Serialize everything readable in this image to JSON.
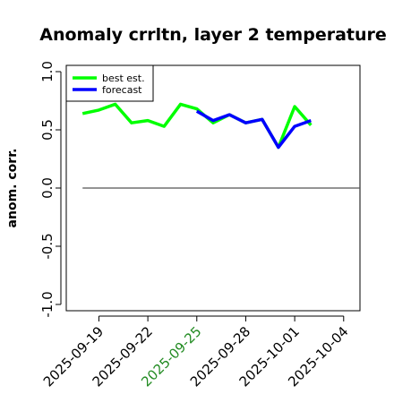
{
  "chart_data": {
    "type": "line",
    "title": "Anomaly crrltn, layer 2 temperature",
    "xlabel": "",
    "ylabel": "anom. corr.",
    "ylim": [
      -1.0,
      1.0
    ],
    "yticks": [
      "-1.0",
      "-0.5",
      "0.0",
      "0.5",
      "1.0"
    ],
    "ytick_values": [
      -1.0,
      -0.5,
      0.0,
      0.5,
      1.0
    ],
    "x_range": [
      "2025-09-17",
      "2025-10-05"
    ],
    "xticks": [
      {
        "date": "2025-09-19",
        "label": "2025-09-19",
        "color": "#000000"
      },
      {
        "date": "2025-09-22",
        "label": "2025-09-22",
        "color": "#000000"
      },
      {
        "date": "2025-09-25",
        "label": "2025-09-25",
        "color": "#228b22"
      },
      {
        "date": "2025-09-28",
        "label": "2025-09-28",
        "color": "#000000"
      },
      {
        "date": "2025-10-01",
        "label": "2025-10-01",
        "color": "#000000"
      },
      {
        "date": "2025-10-04",
        "label": "2025-10-04",
        "color": "#000000"
      }
    ],
    "reference_line": {
      "y": 0.0,
      "x": [
        "2025-09-18",
        "2025-10-05"
      ],
      "color": "#555555"
    },
    "legend_position": "top-left",
    "series": [
      {
        "name": "best est.",
        "color": "#00ff00",
        "x": [
          "2025-09-18",
          "2025-09-19",
          "2025-09-20",
          "2025-09-21",
          "2025-09-22",
          "2025-09-23",
          "2025-09-24",
          "2025-09-25",
          "2025-09-26",
          "2025-09-27",
          "2025-09-28",
          "2025-09-29",
          "2025-09-30",
          "2025-10-01",
          "2025-10-02"
        ],
        "y": [
          0.64,
          0.67,
          0.72,
          0.56,
          0.58,
          0.53,
          0.72,
          0.68,
          0.56,
          0.63,
          0.56,
          0.59,
          0.35,
          0.7,
          0.54
        ]
      },
      {
        "name": "forecast",
        "color": "#0000ff",
        "x": [
          "2025-09-25",
          "2025-09-26",
          "2025-09-27",
          "2025-09-28",
          "2025-09-29",
          "2025-09-30",
          "2025-10-01",
          "2025-10-02"
        ],
        "y": [
          0.66,
          0.58,
          0.63,
          0.56,
          0.59,
          0.35,
          0.53,
          0.58
        ]
      }
    ]
  }
}
